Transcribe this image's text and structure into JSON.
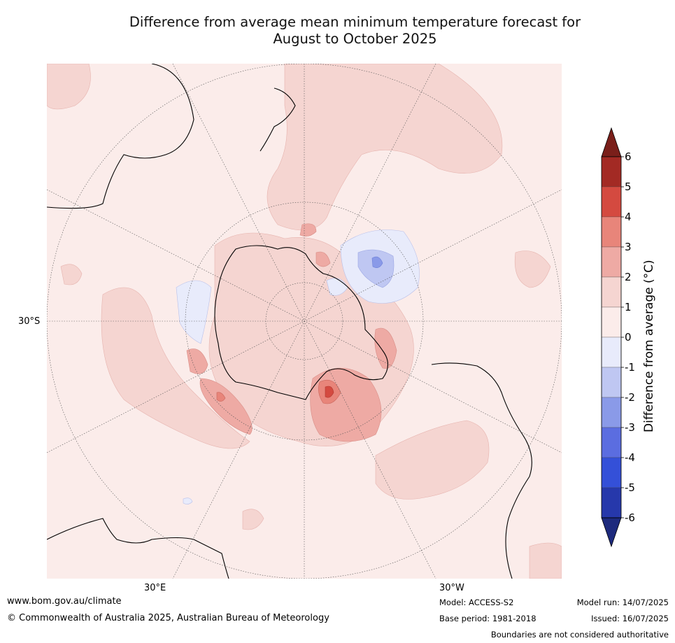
{
  "title_line1": "Difference from average mean minimum temperature forecast for",
  "title_line2": "August to October 2025",
  "map": {
    "projection": "south-polar stereographic",
    "lat_label": "30°S",
    "lon_labels": [
      "30°E",
      "30°W"
    ],
    "land_outline_color": "#000000",
    "graticule_color": "#555555"
  },
  "colorbar": {
    "title": "Difference from average (°C)",
    "ticks": [
      "6",
      "5",
      "4",
      "3",
      "2",
      "1",
      "0",
      "-1",
      "-2",
      "-3",
      "-4",
      "-5",
      "-6"
    ],
    "colors_top_to_bottom": [
      "#a32a24",
      "#d44a40",
      "#e8857a",
      "#eeaaa4",
      "#f5d5d1",
      "#fbecea",
      "#e8ebfb",
      "#bfc7f2",
      "#8a9ae8",
      "#5b6de0",
      "#3450d8",
      "#2638ab"
    ],
    "over_color": "#7a1f1a",
    "under_color": "#1d2a7d"
  },
  "footer": {
    "website": "www.bom.gov.au/climate",
    "copyright": "© Commonwealth of Australia 2025, Australian Bureau of Meteorology",
    "model": "Model: ACCESS-S2",
    "base_period": "Base period: 1981-2018",
    "model_run": "Model run: 14/07/2025",
    "issued": "Issued: 16/07/2025",
    "disclaimer": "Boundaries are not considered authoritative"
  }
}
